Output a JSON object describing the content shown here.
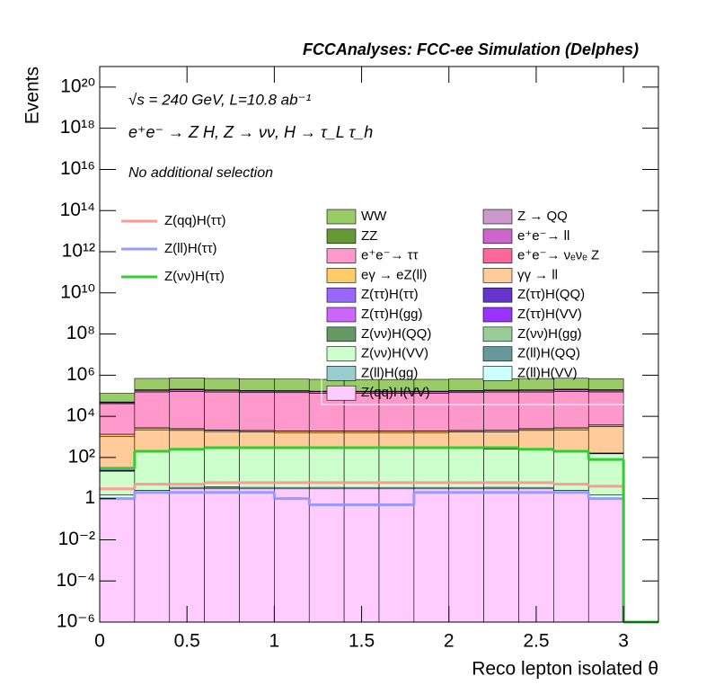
{
  "chart_data": {
    "type": "stacked_histogram",
    "title": "FCCAnalyses: FCC-ee Simulation (Delphes)",
    "annotations": [
      "√s = 240 GeV, L=10.8 ab⁻¹",
      "e⁺e⁻ → Z H, Z → νν, H → τ_L τ_h",
      "No additional selection"
    ],
    "xlabel": "Reco lepton isolated θ",
    "ylabel": "Events",
    "log_y": true,
    "bins": [
      0,
      0.2,
      0.4,
      0.6,
      0.8,
      1.0,
      1.2,
      1.4,
      1.6,
      1.8,
      2.0,
      2.2,
      2.4,
      2.6,
      2.8,
      3.0,
      3.2
    ],
    "xlim": [
      0,
      3.2
    ],
    "xticks": [
      0,
      0.5,
      1,
      1.5,
      2,
      2.5,
      3
    ],
    "ylim": [
      1e-06,
      1e+21
    ],
    "yticks": [
      {
        "value": 1e-06,
        "label": "10⁻⁶"
      },
      {
        "value": 0.0001,
        "label": "10⁻⁴"
      },
      {
        "value": 0.01,
        "label": "10⁻²"
      },
      1,
      {
        "value": 100,
        "label": "10²"
      },
      {
        "value": 10000,
        "label": "10⁴"
      },
      {
        "value": 1000000,
        "label": "10⁶"
      },
      {
        "value": 100000000.0,
        "label": "10⁸"
      },
      {
        "value": 10000000000.0,
        "label": "10¹⁰"
      },
      {
        "value": 1000000000000.0,
        "label": "10¹²"
      },
      {
        "value": 100000000000000.0,
        "label": "10¹⁴"
      },
      {
        "value": 1e+16,
        "label": "10¹⁶"
      },
      {
        "value": 1e+18,
        "label": "10¹⁸"
      },
      {
        "value": 1e+20,
        "label": "10²⁰"
      }
    ],
    "series": [
      {
        "name": "WW",
        "color": "#99cc66",
        "values": [
          80000,
          500000,
          520000,
          500000,
          480000,
          470000,
          460000,
          450000,
          450000,
          460000,
          470000,
          480000,
          490000,
          500000,
          480000,
          0
        ]
      },
      {
        "name": "Z → QQ",
        "color": "#cc99cc",
        "values": [
          500,
          1500,
          1200,
          1000,
          900,
          800,
          800,
          800,
          800,
          800,
          900,
          1000,
          1200,
          1500,
          3000,
          0
        ]
      },
      {
        "name": "ZZ",
        "color": "#669933",
        "values": [
          3000,
          10000,
          10000,
          9000,
          9000,
          8000,
          8000,
          8000,
          8000,
          8000,
          9000,
          9000,
          10000,
          10000,
          10000,
          0
        ]
      },
      {
        "name": "e⁺e⁻→ ll",
        "color": "#cc66cc",
        "values": [
          5000,
          30000,
          35000,
          30000,
          28000,
          27000,
          26000,
          25000,
          25000,
          26000,
          27000,
          28000,
          30000,
          35000,
          30000,
          0
        ]
      },
      {
        "name": "e⁺e⁻→ ττ",
        "color": "#ff99cc",
        "values": [
          40000,
          150000,
          160000,
          150000,
          140000,
          140000,
          130000,
          130000,
          130000,
          130000,
          140000,
          150000,
          150000,
          160000,
          150000,
          0
        ]
      },
      {
        "name": "e⁺e⁻→ νₑνₑ Z",
        "color": "#ff6699",
        "values": [
          20,
          50,
          50,
          50,
          50,
          50,
          50,
          50,
          50,
          50,
          50,
          50,
          50,
          50,
          50,
          0
        ]
      },
      {
        "name": "eγ → eZ(ll)",
        "color": "#ffcc66",
        "values": [
          300,
          500,
          400,
          300,
          300,
          300,
          300,
          300,
          300,
          300,
          300,
          300,
          400,
          500,
          600,
          0
        ]
      },
      {
        "name": "γγ → ll",
        "color": "#ffcc99",
        "values": [
          1000,
          2000,
          1800,
          1500,
          1400,
          1300,
          1300,
          1300,
          1300,
          1300,
          1400,
          1500,
          1800,
          2000,
          3000,
          0
        ]
      },
      {
        "name": "Z(ττ)H(ττ)",
        "color": "#9966ff",
        "values": [
          5,
          10,
          10,
          10,
          10,
          10,
          10,
          10,
          10,
          10,
          10,
          10,
          10,
          10,
          10,
          0
        ]
      },
      {
        "name": "Z(ττ)H(QQ)",
        "color": "#6633cc",
        "values": [
          0.3,
          0.2,
          0.3,
          0.3,
          0.3,
          0.3,
          0.3,
          0.3,
          0.3,
          0.3,
          0.3,
          0.3,
          0.3,
          0.3,
          0.3,
          0
        ]
      },
      {
        "name": "Z(ττ)H(gg)",
        "color": "#cc66ff",
        "values": [
          0,
          0.03,
          0,
          0.03,
          0,
          0.02,
          0,
          0,
          0,
          0.03,
          0.03,
          0.03,
          0.03,
          0.03,
          0.03,
          0
        ]
      },
      {
        "name": "Z(ττ)H(VV)",
        "color": "#9933ff",
        "values": [
          1,
          2,
          2,
          2,
          2,
          2,
          2,
          2,
          2,
          2,
          2,
          2,
          2,
          2,
          2,
          0
        ]
      },
      {
        "name": "Z(νν)H(QQ)",
        "color": "#669966",
        "values": [
          0.5,
          1,
          1,
          1,
          1,
          1,
          1,
          1,
          1,
          1,
          1,
          1,
          1,
          1,
          1,
          0
        ]
      },
      {
        "name": "Z(νν)H(gg)",
        "color": "#99cc99",
        "values": [
          0,
          0,
          0.02,
          0,
          0,
          0,
          0,
          0,
          0,
          0,
          0,
          0,
          0,
          0,
          0,
          0
        ]
      },
      {
        "name": "Z(νν)H(VV)",
        "color": "#ccffcc",
        "values": [
          20,
          200,
          250,
          300,
          300,
          300,
          300,
          300,
          300,
          300,
          300,
          250,
          250,
          200,
          150,
          0
        ]
      },
      {
        "name": "Z(ll)H(QQ)",
        "color": "#669999",
        "values": [
          0,
          0,
          0,
          0.2,
          0.03,
          0,
          0.03,
          0,
          0,
          0,
          0,
          0.06,
          0,
          0,
          0,
          0
        ]
      },
      {
        "name": "Z(ll)H(gg)",
        "color": "#99cccc",
        "values": [
          0,
          0,
          0.03,
          0,
          0,
          0,
          0,
          0,
          0,
          0,
          0,
          0,
          0,
          0,
          0,
          0
        ]
      },
      {
        "name": "Z(ll)H(VV)",
        "color": "#ccffff",
        "values": [
          0.5,
          0.5,
          0.5,
          0.5,
          0.5,
          0.5,
          0.5,
          0.5,
          0.5,
          0.5,
          0.5,
          0.5,
          0.5,
          0.5,
          0.5,
          0
        ]
      },
      {
        "name": "Z(qq)H(VV)",
        "color": "#ffccff",
        "values": [
          1,
          2,
          3,
          3,
          3,
          3,
          3,
          3,
          3,
          3,
          3,
          3,
          3,
          2,
          1,
          0
        ]
      }
    ],
    "signals": [
      {
        "name": "Z(qq)H(ττ)",
        "color": "#ff9999",
        "values": [
          3,
          5,
          5,
          6,
          6,
          6,
          6,
          6,
          6,
          6,
          6,
          6,
          6,
          5,
          4,
          0
        ]
      },
      {
        "name": "Z(ll)H(ττ)",
        "color": "#9999ff",
        "values": [
          1,
          2,
          2,
          2,
          2,
          1,
          0.5,
          0.5,
          0.5,
          2,
          2,
          2,
          2,
          2,
          1,
          0
        ]
      },
      {
        "name": "Z(νν)H(ττ)",
        "color": "#33cc33",
        "values": [
          30,
          200,
          250,
          300,
          300,
          300,
          300,
          300,
          300,
          300,
          300,
          300,
          250,
          200,
          80,
          0
        ]
      }
    ]
  }
}
